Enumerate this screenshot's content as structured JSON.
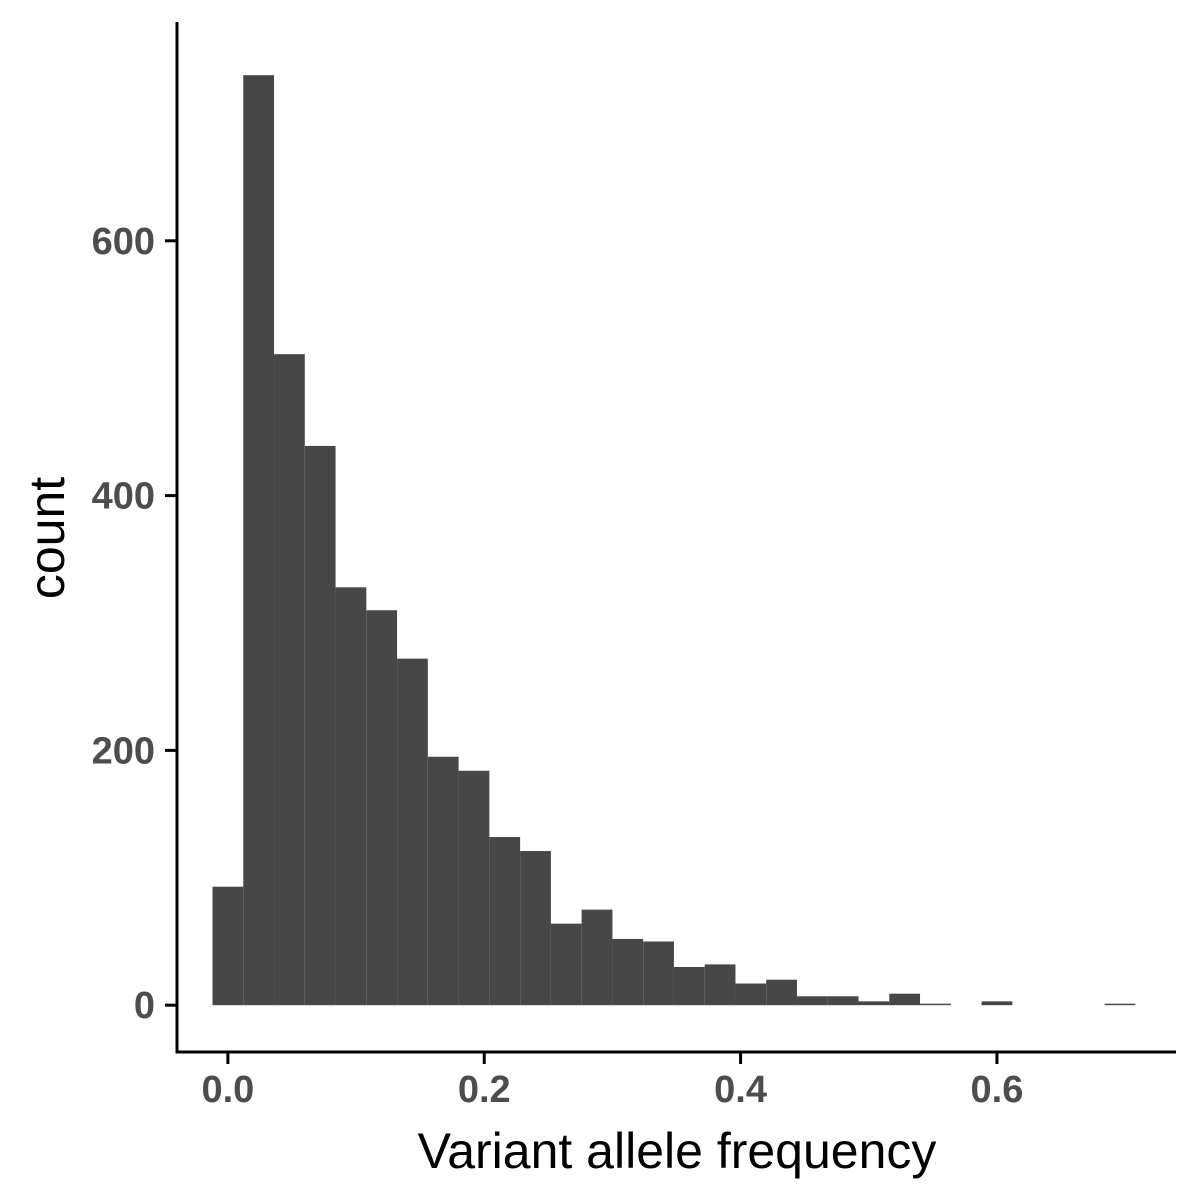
{
  "chart_data": {
    "type": "bar",
    "xlabel": "Variant allele frequency",
    "ylabel": "count",
    "xlim": [
      -0.0397,
      0.7397
    ],
    "ylim": [
      -36.75,
      771.75
    ],
    "x_ticks": [
      0.0,
      0.2,
      0.4,
      0.6
    ],
    "x_tick_labels": [
      "0.0",
      "0.2",
      "0.4",
      "0.6"
    ],
    "y_ticks": [
      0,
      200,
      400,
      600
    ],
    "y_tick_labels": [
      "0",
      "200",
      "400",
      "600"
    ],
    "bin_width": 0.024,
    "bins": [
      {
        "x0": -0.012,
        "x1": 0.012,
        "count": 93
      },
      {
        "x0": 0.012,
        "x1": 0.036,
        "count": 730
      },
      {
        "x0": 0.036,
        "x1": 0.06,
        "count": 511
      },
      {
        "x0": 0.06,
        "x1": 0.084,
        "count": 439
      },
      {
        "x0": 0.084,
        "x1": 0.108,
        "count": 328
      },
      {
        "x0": 0.108,
        "x1": 0.132,
        "count": 310
      },
      {
        "x0": 0.132,
        "x1": 0.156,
        "count": 272
      },
      {
        "x0": 0.156,
        "x1": 0.18,
        "count": 195
      },
      {
        "x0": 0.18,
        "x1": 0.204,
        "count": 184
      },
      {
        "x0": 0.204,
        "x1": 0.228,
        "count": 132
      },
      {
        "x0": 0.228,
        "x1": 0.252,
        "count": 121
      },
      {
        "x0": 0.252,
        "x1": 0.276,
        "count": 64
      },
      {
        "x0": 0.276,
        "x1": 0.3,
        "count": 75
      },
      {
        "x0": 0.3,
        "x1": 0.324,
        "count": 52
      },
      {
        "x0": 0.324,
        "x1": 0.348,
        "count": 50
      },
      {
        "x0": 0.348,
        "x1": 0.372,
        "count": 30
      },
      {
        "x0": 0.372,
        "x1": 0.396,
        "count": 32
      },
      {
        "x0": 0.396,
        "x1": 0.42,
        "count": 17
      },
      {
        "x0": 0.42,
        "x1": 0.444,
        "count": 20
      },
      {
        "x0": 0.444,
        "x1": 0.468,
        "count": 7
      },
      {
        "x0": 0.468,
        "x1": 0.492,
        "count": 7
      },
      {
        "x0": 0.492,
        "x1": 0.516,
        "count": 3
      },
      {
        "x0": 0.516,
        "x1": 0.54,
        "count": 9
      },
      {
        "x0": 0.54,
        "x1": 0.564,
        "count": 1
      },
      {
        "x0": 0.564,
        "x1": 0.588,
        "count": 0
      },
      {
        "x0": 0.588,
        "x1": 0.612,
        "count": 3
      },
      {
        "x0": 0.612,
        "x1": 0.636,
        "count": 0
      },
      {
        "x0": 0.636,
        "x1": 0.66,
        "count": 0
      },
      {
        "x0": 0.66,
        "x1": 0.684,
        "count": 0
      },
      {
        "x0": 0.684,
        "x1": 0.708,
        "count": 1
      }
    ],
    "grid": false,
    "legend": "none",
    "bar_color": "#474747",
    "axis_color": "#000000",
    "tick_label_color": "#4d4d4d"
  }
}
